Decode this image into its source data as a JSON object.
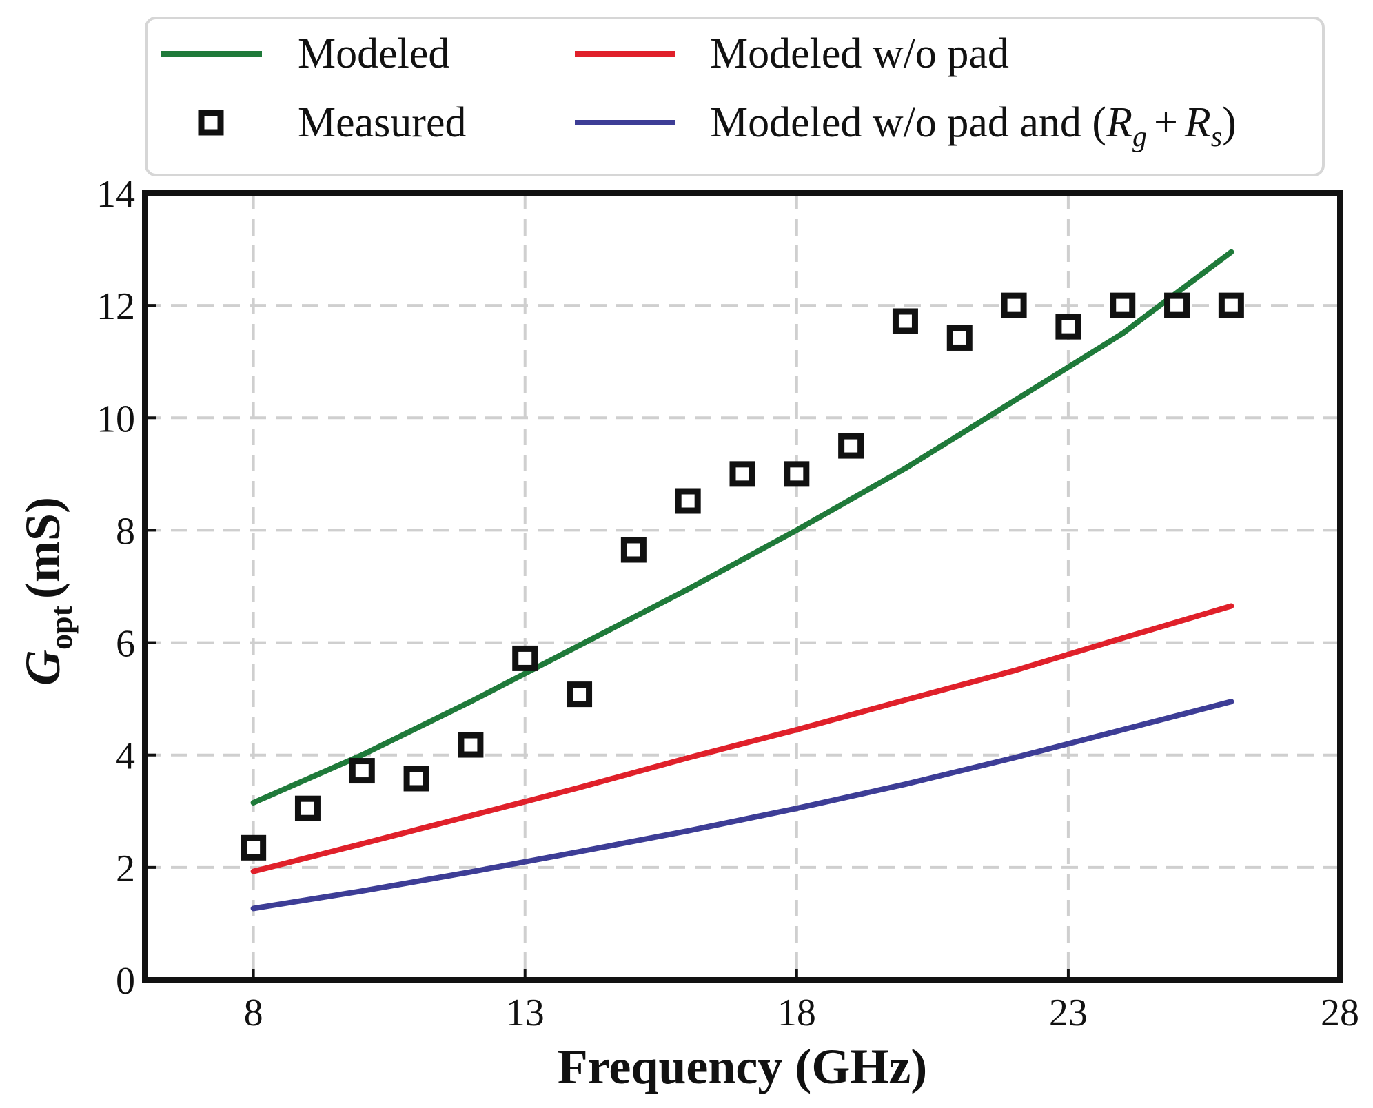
{
  "chart_data": {
    "type": "line",
    "title": "",
    "xlabel": "Frequency (GHz)",
    "ylabel": {
      "symbol": "G",
      "subscript": "opt",
      "unit": "(mS)"
    },
    "xlim": [
      6,
      28
    ],
    "ylim": [
      0,
      14
    ],
    "xticks": [
      8,
      13,
      18,
      23,
      28
    ],
    "yticks": [
      0,
      2,
      4,
      6,
      8,
      10,
      12,
      14
    ],
    "grid": true,
    "legend_position": "top (above plot)",
    "series": [
      {
        "name": "Modeled",
        "kind": "line",
        "color": "#1f7a3a",
        "x": [
          8,
          10,
          12,
          14,
          16,
          18,
          20,
          21,
          22,
          24,
          26
        ],
        "y": [
          3.15,
          4.0,
          4.95,
          5.95,
          6.95,
          8.0,
          9.1,
          9.7,
          10.3,
          11.5,
          12.95
        ]
      },
      {
        "name": "Modeled w/o pad",
        "kind": "line",
        "color": "#e0202a",
        "x": [
          8,
          10,
          12,
          14,
          16,
          18,
          20,
          22,
          24,
          26
        ],
        "y": [
          1.93,
          2.42,
          2.92,
          3.42,
          3.95,
          4.45,
          4.98,
          5.5,
          6.08,
          6.65
        ]
      },
      {
        "name": "Measured",
        "kind": "scatter",
        "color": "#111111",
        "marker": "square",
        "x": [
          8,
          9,
          10,
          11,
          12,
          13,
          14,
          15,
          16,
          17,
          18,
          19,
          20,
          21,
          22,
          23,
          24,
          25,
          26
        ],
        "y": [
          2.35,
          3.05,
          3.72,
          3.58,
          4.18,
          5.72,
          5.08,
          7.65,
          8.52,
          9.0,
          9.0,
          9.5,
          11.72,
          11.42,
          12.0,
          11.62,
          12.0,
          12.0,
          12.0
        ]
      },
      {
        "name": "Modeled w/o pad and (R_g + R_s)",
        "label_parts": {
          "prefix": "Modeled w/o pad and (",
          "r1": "R",
          "r1_sub": "g",
          "plus": "+",
          "r2": "R",
          "r2_sub": "s",
          "suffix": ")"
        },
        "kind": "line",
        "color": "#3d3d96",
        "x": [
          8,
          10,
          12,
          14,
          16,
          18,
          20,
          22,
          24,
          26
        ],
        "y": [
          1.27,
          1.58,
          1.92,
          2.28,
          2.65,
          3.05,
          3.48,
          3.95,
          4.45,
          4.95
        ]
      }
    ]
  }
}
